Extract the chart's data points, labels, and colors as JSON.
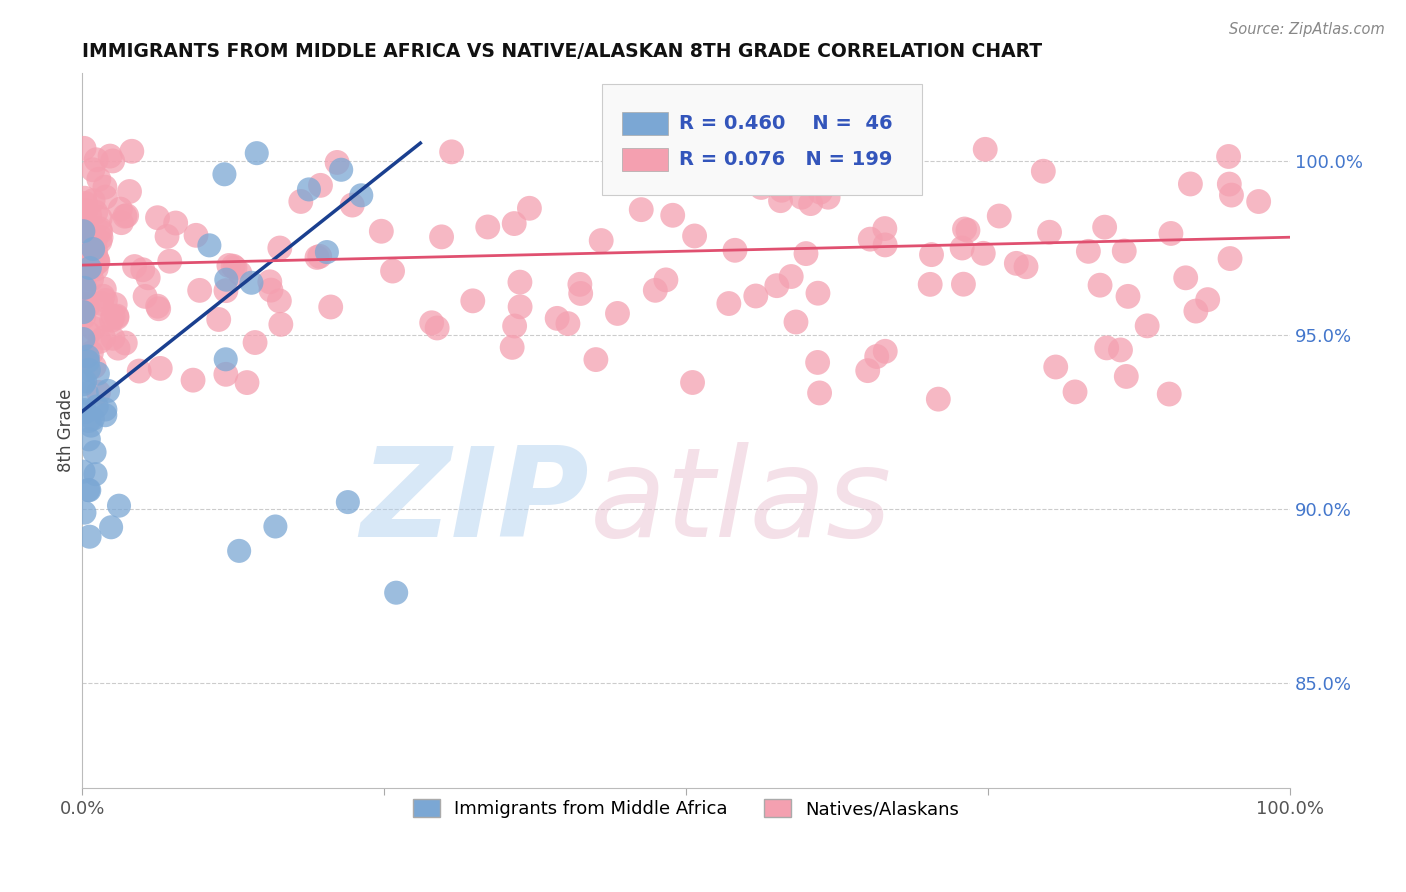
{
  "title": "IMMIGRANTS FROM MIDDLE AFRICA VS NATIVE/ALASKAN 8TH GRADE CORRELATION CHART",
  "source": "Source: ZipAtlas.com",
  "ylabel": "8th Grade",
  "xlim": [
    0.0,
    1.0
  ],
  "ylim": [
    0.82,
    1.025
  ],
  "ytick_positions": [
    0.85,
    0.9,
    0.95,
    1.0
  ],
  "ytick_labels": [
    "85.0%",
    "90.0%",
    "95.0%",
    "100.0%"
  ],
  "blue_R": 0.46,
  "blue_N": 46,
  "pink_R": 0.076,
  "pink_N": 199,
  "blue_color": "#7BA7D4",
  "pink_color": "#F4A0B0",
  "blue_line_color": "#1A3F8F",
  "pink_line_color": "#E05070",
  "legend_label_blue": "Immigrants from Middle Africa",
  "legend_label_pink": "Natives/Alaskans",
  "blue_trend_x0": 0.0,
  "blue_trend_y0": 0.928,
  "blue_trend_x1": 0.28,
  "blue_trend_y1": 1.005,
  "pink_trend_x0": 0.0,
  "pink_trend_y0": 0.97,
  "pink_trend_x1": 1.0,
  "pink_trend_y1": 0.978
}
